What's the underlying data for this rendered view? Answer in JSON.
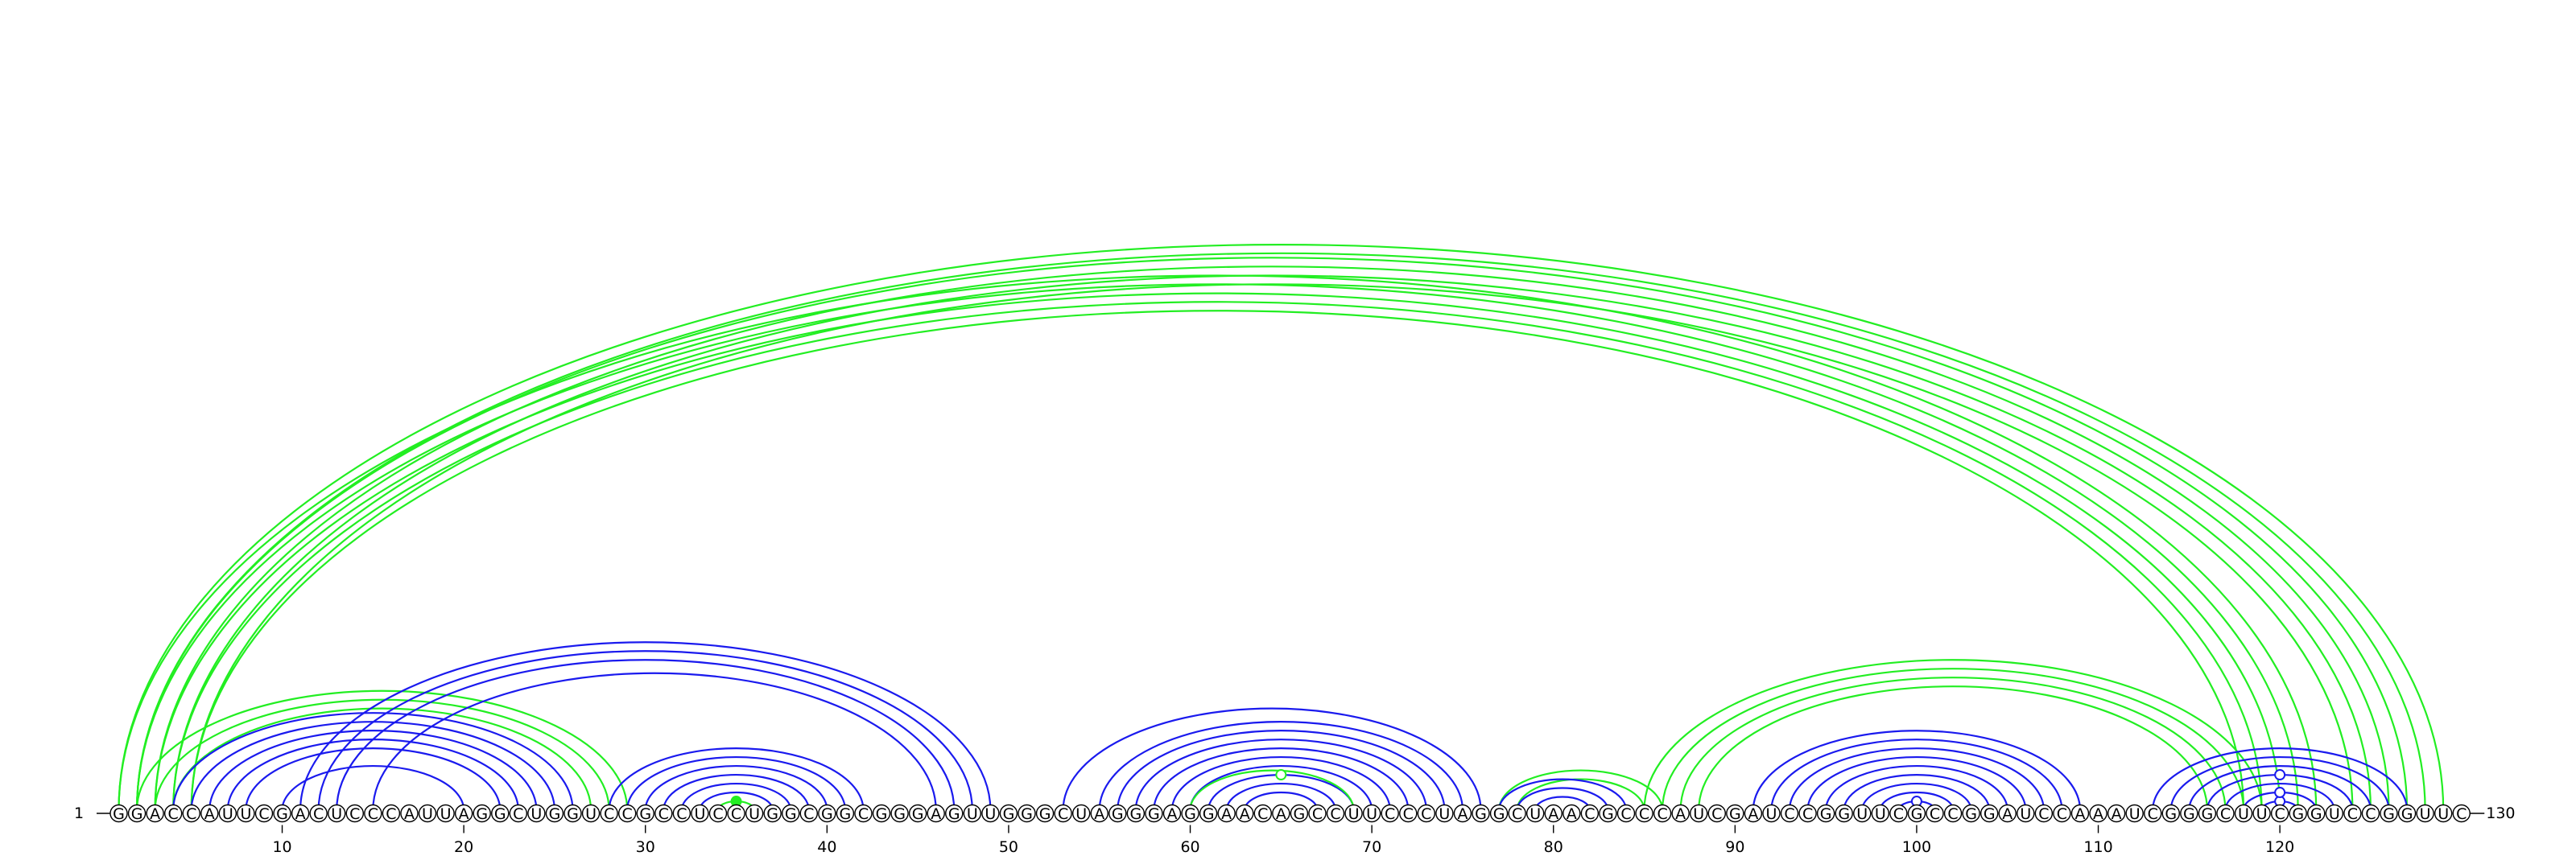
{
  "sequence": "GGACCAUUCGACUCCCAUUAGGCUGGUCCGCCUCCUGGCGGCGGGAGUUGGGCUAGGGAGGAACAGCCUUCCCUAGGCUAACGCCCAUCGAUCCGGUUCGCCGGAUCCAAAUCGGGCUUCGGUCCGGUUC",
  "start_label": "1",
  "end_label": "130",
  "ticks": [
    "10",
    "20",
    "30",
    "40",
    "50",
    "60",
    "70",
    "80",
    "90",
    "100",
    "110",
    "120"
  ],
  "colors": {
    "blue": "#1a1aee",
    "green": "#22ee22",
    "backbone": "#000000"
  },
  "arcs": [
    {
      "color": "green",
      "pairs": [
        [
          1,
          129
        ],
        [
          2,
          128
        ]
      ]
    },
    {
      "color": "green",
      "pairs": [
        [
          1,
          122
        ],
        [
          2,
          121
        ],
        [
          3,
          120
        ],
        [
          4,
          119
        ],
        [
          5,
          118
        ]
      ]
    },
    {
      "color": "green",
      "pairs": [
        [
          2,
          127
        ],
        [
          3,
          126
        ],
        [
          4,
          125
        ],
        [
          5,
          124
        ]
      ]
    },
    {
      "color": "green",
      "pairs": [
        [
          2,
          29
        ],
        [
          3,
          28
        ],
        [
          4,
          27
        ]
      ]
    },
    {
      "color": "blue",
      "pairs": [
        [
          4,
          26
        ],
        [
          5,
          25
        ],
        [
          6,
          24
        ],
        [
          7,
          23
        ],
        [
          8,
          22
        ],
        [
          10,
          20
        ]
      ]
    },
    {
      "color": "blue",
      "pairs": [
        [
          11,
          49
        ],
        [
          12,
          48
        ],
        [
          13,
          47
        ],
        [
          15,
          46
        ]
      ]
    },
    {
      "color": "blue",
      "pairs": [
        [
          28,
          42
        ],
        [
          29,
          41
        ],
        [
          30,
          40
        ],
        [
          31,
          39
        ],
        [
          32,
          38
        ],
        [
          33,
          37
        ]
      ]
    },
    {
      "color": "green",
      "pairs": [
        [
          34,
          36
        ]
      ]
    },
    {
      "color": "blue",
      "pairs": [
        [
          53,
          76
        ],
        [
          55,
          75
        ],
        [
          56,
          74
        ],
        [
          57,
          73
        ],
        [
          58,
          72
        ],
        [
          59,
          71
        ],
        [
          60,
          70
        ],
        [
          61,
          69
        ],
        [
          62,
          68
        ],
        [
          63,
          67
        ]
      ]
    },
    {
      "color": "green",
      "pairs": [
        [
          60,
          69
        ]
      ]
    },
    {
      "color": "green",
      "pairs": [
        [
          77,
          86
        ],
        [
          78,
          85
        ]
      ]
    },
    {
      "color": "blue",
      "pairs": [
        [
          77,
          84
        ],
        [
          78,
          83
        ],
        [
          79,
          82
        ]
      ]
    },
    {
      "color": "green",
      "pairs": [
        [
          85,
          119
        ],
        [
          86,
          118
        ],
        [
          87,
          117
        ],
        [
          88,
          116
        ]
      ]
    },
    {
      "color": "blue",
      "pairs": [
        [
          91,
          109
        ],
        [
          92,
          108
        ],
        [
          93,
          107
        ],
        [
          94,
          106
        ],
        [
          95,
          105
        ],
        [
          96,
          104
        ],
        [
          97,
          103
        ],
        [
          98,
          102
        ],
        [
          99,
          101
        ]
      ]
    },
    {
      "color": "blue",
      "pairs": [
        [
          113,
          127
        ],
        [
          114,
          126
        ],
        [
          115,
          125
        ],
        [
          116,
          124
        ],
        [
          117,
          123
        ],
        [
          118,
          122
        ],
        [
          119,
          121
        ]
      ]
    }
  ],
  "markers": [
    {
      "pos": 35,
      "height": 1,
      "color": "green",
      "filled": true
    },
    {
      "pos": 65,
      "height": 4,
      "color": "green",
      "filled": false
    },
    {
      "pos": 100,
      "height": 1,
      "color": "blue",
      "filled": false
    },
    {
      "pos": 120,
      "height": 1,
      "color": "blue",
      "filled": false
    },
    {
      "pos": 120,
      "height": 2,
      "color": "blue",
      "filled": false
    },
    {
      "pos": 120,
      "height": 4,
      "color": "blue",
      "filled": false
    }
  ]
}
